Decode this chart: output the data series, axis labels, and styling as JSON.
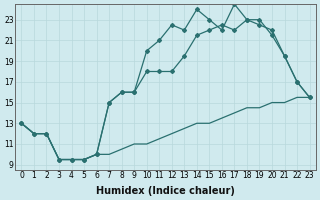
{
  "xlabel": "Humidex (Indice chaleur)",
  "bg_color": "#d0eaee",
  "line_color": "#2a7070",
  "xlim_min": -0.5,
  "xlim_max": 23.5,
  "ylim_min": 8.5,
  "ylim_max": 24.5,
  "yticks": [
    9,
    11,
    13,
    15,
    17,
    19,
    21,
    23
  ],
  "xticks": [
    0,
    1,
    2,
    3,
    4,
    5,
    6,
    7,
    8,
    9,
    10,
    11,
    12,
    13,
    14,
    15,
    16,
    17,
    18,
    19,
    20,
    21,
    22,
    23
  ],
  "line1_x": [
    0,
    1,
    2,
    3,
    4,
    5,
    6,
    7,
    8,
    9,
    10,
    11,
    12,
    13,
    14,
    15,
    16,
    17,
    18,
    19,
    20,
    21,
    22,
    23
  ],
  "line1_y": [
    13,
    12,
    12,
    9.5,
    9.5,
    9.5,
    10,
    10,
    10.5,
    11,
    11,
    11.5,
    12,
    12.5,
    13,
    13,
    13.5,
    14,
    14.5,
    14.5,
    15,
    15,
    15.5,
    15.5
  ],
  "line2_x": [
    0,
    1,
    2,
    3,
    4,
    5,
    6,
    7,
    8,
    9,
    10,
    11,
    12,
    13,
    14,
    15,
    16,
    17,
    18,
    19,
    20,
    21,
    22,
    23
  ],
  "line2_y": [
    13,
    12,
    12,
    9.5,
    9.5,
    9.5,
    10,
    15,
    16,
    16,
    18,
    18,
    18,
    19.5,
    21.5,
    22,
    22.5,
    22,
    23,
    23,
    21.5,
    19.5,
    17,
    15.5
  ],
  "line3_x": [
    0,
    1,
    2,
    3,
    4,
    5,
    6,
    7,
    8,
    9,
    10,
    11,
    12,
    13,
    14,
    15,
    16,
    17,
    18,
    19,
    20,
    21,
    22,
    23
  ],
  "line3_y": [
    13,
    12,
    12,
    9.5,
    9.5,
    9.5,
    10,
    15,
    16,
    16,
    20,
    21,
    22.5,
    22,
    24,
    23,
    22,
    24.5,
    23,
    22.5,
    22,
    19.5,
    17,
    15.5
  ],
  "grid_color": "#b8d8dc",
  "marker": "D",
  "markersize": 2.0,
  "linewidth": 0.9,
  "label_fontsize": 7.0,
  "tick_fontsize": 5.5
}
